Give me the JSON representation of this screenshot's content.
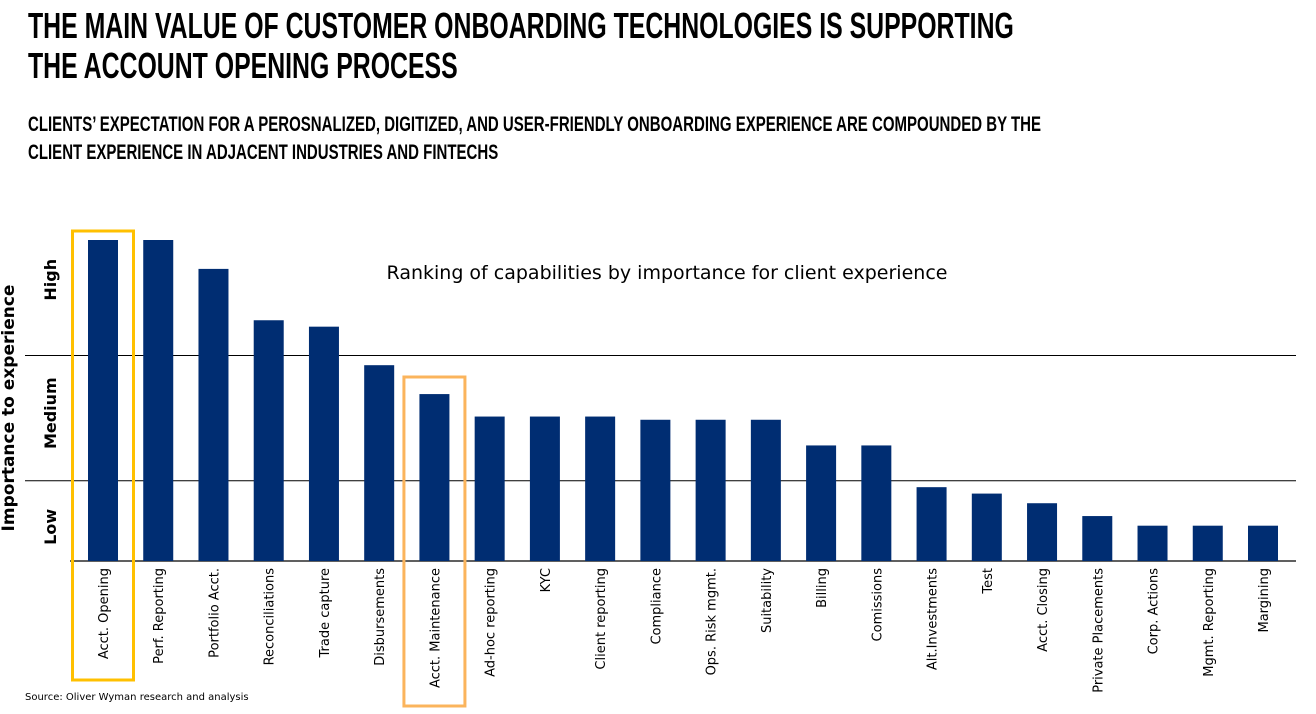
{
  "header": {
    "title_line1": "THE MAIN VALUE OF CUSTOMER ONBOARDING TECHNOLOGIES IS SUPPORTING",
    "title_line2": "THE ACCOUNT OPENING PROCESS",
    "subtitle_line1": "CLIENTS’ EXPECTATION FOR A PEROSNALIZED, DIGITIZED, AND USER-FRIENDLY ONBOARDING EXPERIENCE ARE COMPOUNDED BY THE",
    "subtitle_line2": "CLIENT EXPERIENCE IN ADJACENT INDUSTRIES AND FINTECHS"
  },
  "source": "Source: Oliver Wyman research and analysis",
  "chart_data": {
    "type": "bar",
    "title": "Ranking of capabilities by importance for client experience",
    "ylabel": "Importance to experience",
    "xlabel": "",
    "ylim": [
      0,
      100
    ],
    "bands": [
      {
        "label": "Low",
        "from": 0,
        "to": 25
      },
      {
        "label": "Medium",
        "from": 25,
        "to": 64
      },
      {
        "label": "High",
        "from": 64,
        "to": 100
      }
    ],
    "categories": [
      "Acct. Opening",
      "Perf. Reporting",
      "Portfolio Acct.",
      "Reconciliations",
      "Trade capture",
      "Disbursements",
      "Acct. Maintenance",
      "Ad-hoc reporting",
      "KYC",
      "Client reporting",
      "Compliance",
      "Ops. Risk mgmt.",
      "Suitability",
      "Billing",
      "Comissions",
      "Alt.Investments",
      "Test",
      "Acct. Closing",
      "Private Placements",
      "Corp. Actions",
      "Mgmt. Reporting",
      "Margining"
    ],
    "values": [
      100,
      100,
      91,
      75,
      73,
      61,
      52,
      45,
      45,
      45,
      44,
      44,
      44,
      36,
      36,
      23,
      21,
      18,
      14,
      11,
      11,
      11
    ],
    "bar_color": "#002D72",
    "highlights": [
      {
        "category": "Acct. Opening",
        "color": "#FFC000"
      },
      {
        "category": "Acct. Maintenance",
        "color": "#FBB45C"
      }
    ],
    "grid": false
  }
}
